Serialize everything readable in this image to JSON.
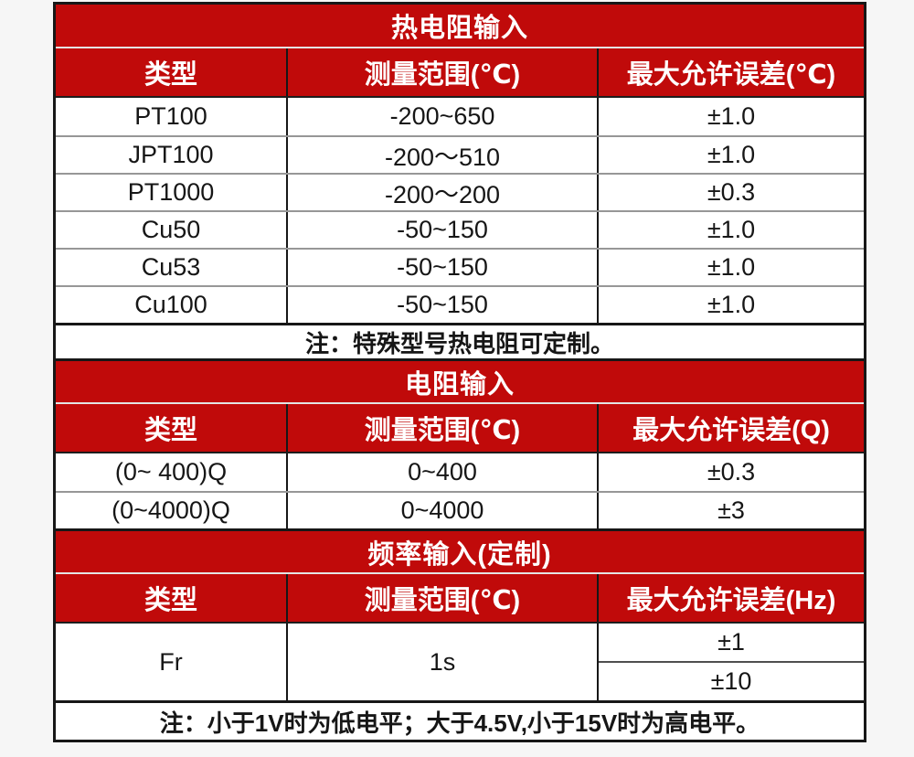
{
  "page": {
    "background": "#f6f6f6",
    "accent_red": "#c00a0a",
    "border_dark": "#171717"
  },
  "table": {
    "sections": [
      {
        "title": "热电阻输入",
        "headers": [
          "类型",
          "测量范围(℃)",
          "最大允许误差(℃)"
        ],
        "rows": [
          [
            "PT100",
            "-200~650",
            "±1.0"
          ],
          [
            "JPT100",
            "-200～510",
            "±1.0"
          ],
          [
            "PT1000",
            "-200～200",
            "±0.3"
          ],
          [
            "Cu50",
            "-50~150",
            "±1.0"
          ],
          [
            "Cu53",
            "-50~150",
            "±1.0"
          ],
          [
            "Cu100",
            "-50~150",
            "±1.0"
          ]
        ],
        "note": "注：特殊型号热电阻可定制。"
      },
      {
        "title": "电阻输入",
        "headers": [
          "类型",
          "测量范围(℃)",
          "最大允许误差(Q)"
        ],
        "rows": [
          [
            "(0~ 400)Q",
            "0~400",
            "±0.3"
          ],
          [
            "(0~4000)Q",
            "0~4000",
            "±3"
          ]
        ]
      },
      {
        "title": "频率输入(定制)",
        "headers": [
          "类型",
          "测量范围(℃)",
          "最大允许误差(Hz)"
        ],
        "merged_row": {
          "type": "Fr",
          "range": "1s",
          "errors": [
            "±1",
            "±10"
          ]
        },
        "note": "注：小于1V时为低电平；大于4.5V,小于15V时为高电平。"
      }
    ]
  }
}
